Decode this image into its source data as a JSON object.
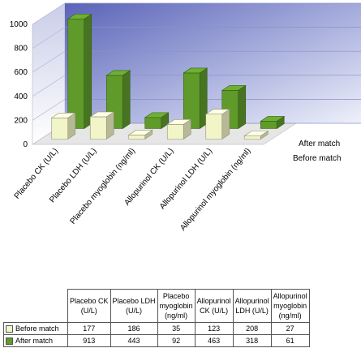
{
  "chart_data": {
    "type": "bar",
    "style": "3d-clustered-depth",
    "categories": [
      "Placebo CK (U/L)",
      "Placebo LDH (U/L)",
      "Placebo myoglobin (ng/ml)",
      "Allopurinol CK (U/L)",
      "Allopurinol LDH (U/L)",
      "Allopurinol myoglobin (ng/ml)"
    ],
    "series": [
      {
        "name": "Before match",
        "values": [
          177,
          186,
          35,
          123,
          208,
          27
        ],
        "color": "#f2f5c8"
      },
      {
        "name": "After match",
        "values": [
          913,
          443,
          92,
          463,
          318,
          61
        ],
        "color": "#5f9a2a"
      }
    ],
    "ylim": [
      0,
      1000
    ],
    "yticks": [
      0,
      200,
      400,
      600,
      800,
      1000
    ],
    "grid": true,
    "legend": "depth-axis-right",
    "table": {
      "headers": [
        [
          "Placebo CK",
          "(U/L)"
        ],
        [
          "Placebo LDH",
          "(U/L)"
        ],
        [
          "Placebo",
          "myoglobin",
          "(ng/ml)"
        ],
        [
          "Allopurinol",
          "CK (U/L)"
        ],
        [
          "Allopurinol",
          "LDH (U/L)"
        ],
        [
          "Allopurinol",
          "myoglobin",
          "(ng/ml)"
        ]
      ],
      "rows": [
        {
          "label": "Before match",
          "values": [
            "177",
            "186",
            "35",
            "123",
            "208",
            "27"
          ]
        },
        {
          "label": "After match",
          "values": [
            "913",
            "443",
            "92",
            "463",
            "318",
            "61"
          ]
        }
      ]
    }
  }
}
